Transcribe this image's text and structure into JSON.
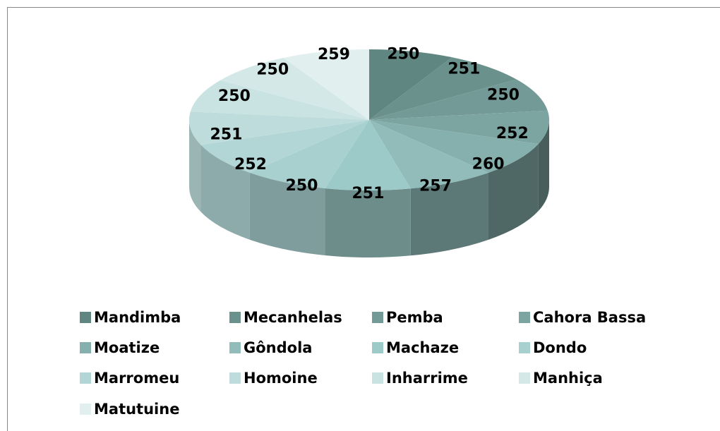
{
  "chart_data": {
    "type": "pie3d",
    "categories": [
      "Mandimba",
      "Mecanhelas",
      "Pemba",
      "Cahora Bassa",
      "Moatize",
      "Gôndola",
      "Machaze",
      "Dondo",
      "Marromeu",
      "Homoine",
      "Inharrime",
      "Manhiça",
      "Matutuine"
    ],
    "values": [
      250,
      251,
      250,
      252,
      260,
      257,
      251,
      250,
      252,
      251,
      250,
      250,
      259
    ],
    "colors": [
      "#608681",
      "#6a918c",
      "#739a96",
      "#7ca5a1",
      "#86b0ad",
      "#91bcba",
      "#9ccac8",
      "#a7d0cf",
      "#b2d6d6",
      "#bedcdc",
      "#c9e2e2",
      "#d4e8e8",
      "#e2efef"
    ],
    "legend": "bottom"
  }
}
